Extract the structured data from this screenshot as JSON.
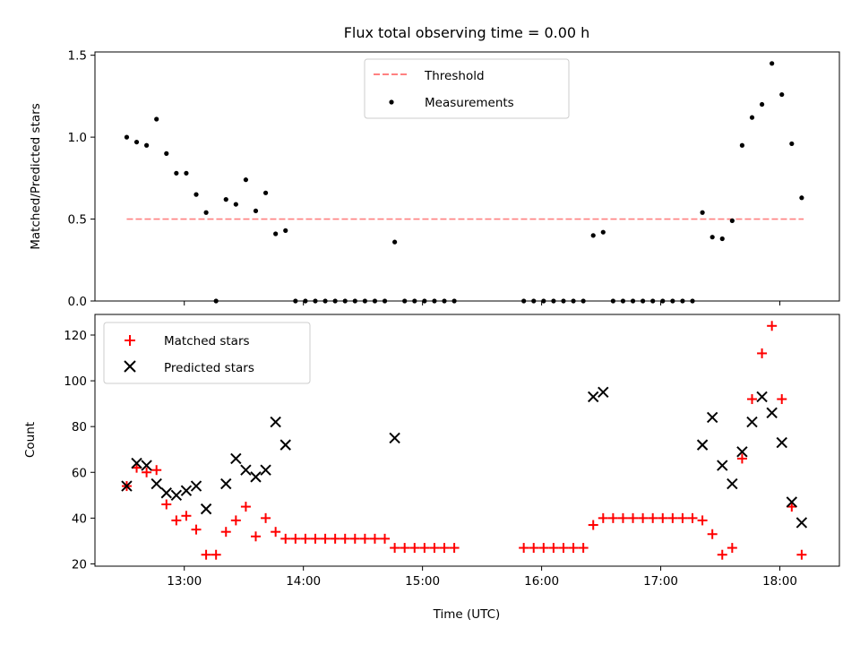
{
  "chart_data": [
    {
      "type": "scatter",
      "title": "Flux total observing time = 0.00 h",
      "xlabel": "",
      "ylabel": "Matched/Predicted stars",
      "x_unit": "time_utc",
      "xlim": [
        "12:15",
        "18:30"
      ],
      "ylim": [
        0,
        1.52
      ],
      "xticks": [
        "13:00",
        "14:00",
        "15:00",
        "16:00",
        "17:00",
        "18:00"
      ],
      "yticks": [
        "0.0",
        "0.5",
        "1.0",
        "1.5"
      ],
      "legend_position": "upper center",
      "threshold": {
        "name": "Threshold",
        "value": 0.5,
        "x_range": [
          "12:31",
          "18:12"
        ],
        "color": "#ff8080",
        "style": "dashed"
      },
      "series": [
        {
          "name": "Measurements",
          "color": "#000000",
          "marker": "dot",
          "points": [
            [
              "12:31",
              1.0
            ],
            [
              "12:36",
              0.97
            ],
            [
              "12:41",
              0.95
            ],
            [
              "12:46",
              1.11
            ],
            [
              "12:51",
              0.9
            ],
            [
              "12:56",
              0.78
            ],
            [
              "13:01",
              0.78
            ],
            [
              "13:06",
              0.65
            ],
            [
              "13:11",
              0.54
            ],
            [
              "13:16",
              0.0
            ],
            [
              "13:21",
              0.62
            ],
            [
              "13:26",
              0.59
            ],
            [
              "13:31",
              0.74
            ],
            [
              "13:36",
              0.55
            ],
            [
              "13:41",
              0.66
            ],
            [
              "13:46",
              0.41
            ],
            [
              "13:51",
              0.43
            ],
            [
              "13:56",
              0.0
            ],
            [
              "14:01",
              0.0
            ],
            [
              "14:06",
              0.0
            ],
            [
              "14:11",
              0.0
            ],
            [
              "14:16",
              0.0
            ],
            [
              "14:21",
              0.0
            ],
            [
              "14:26",
              0.0
            ],
            [
              "14:31",
              0.0
            ],
            [
              "14:36",
              0.0
            ],
            [
              "14:41",
              0.0
            ],
            [
              "14:46",
              0.36
            ],
            [
              "14:51",
              0.0
            ],
            [
              "14:56",
              0.0
            ],
            [
              "15:01",
              0.0
            ],
            [
              "15:06",
              0.0
            ],
            [
              "15:11",
              0.0
            ],
            [
              "15:16",
              0.0
            ],
            [
              "15:51",
              0.0
            ],
            [
              "15:56",
              0.0
            ],
            [
              "16:01",
              0.0
            ],
            [
              "16:06",
              0.0
            ],
            [
              "16:11",
              0.0
            ],
            [
              "16:16",
              0.0
            ],
            [
              "16:21",
              0.0
            ],
            [
              "16:26",
              0.4
            ],
            [
              "16:31",
              0.42
            ],
            [
              "16:36",
              0.0
            ],
            [
              "16:41",
              0.0
            ],
            [
              "16:46",
              0.0
            ],
            [
              "16:51",
              0.0
            ],
            [
              "16:56",
              0.0
            ],
            [
              "17:01",
              0.0
            ],
            [
              "17:06",
              0.0
            ],
            [
              "17:11",
              0.0
            ],
            [
              "17:16",
              0.0
            ],
            [
              "17:21",
              0.54
            ],
            [
              "17:26",
              0.39
            ],
            [
              "17:31",
              0.38
            ],
            [
              "17:36",
              0.49
            ],
            [
              "17:41",
              0.95
            ],
            [
              "17:46",
              1.12
            ],
            [
              "17:51",
              1.2
            ],
            [
              "17:56",
              1.45
            ],
            [
              "18:01",
              1.26
            ],
            [
              "18:06",
              0.96
            ],
            [
              "18:11",
              0.63
            ]
          ]
        }
      ]
    },
    {
      "type": "scatter",
      "title": "",
      "xlabel": "Time (UTC)",
      "ylabel": "Count",
      "x_unit": "time_utc",
      "xlim": [
        "12:15",
        "18:30"
      ],
      "ylim": [
        19,
        129
      ],
      "xticks": [
        "13:00",
        "14:00",
        "15:00",
        "16:00",
        "17:00",
        "18:00"
      ],
      "yticks": [
        "20",
        "40",
        "60",
        "80",
        "100",
        "120"
      ],
      "legend_position": "upper left",
      "series": [
        {
          "name": "Matched stars",
          "color": "#ff0000",
          "marker": "plus",
          "points": [
            [
              "12:31",
              54
            ],
            [
              "12:36",
              62
            ],
            [
              "12:41",
              60
            ],
            [
              "12:46",
              61
            ],
            [
              "12:51",
              46
            ],
            [
              "12:56",
              39
            ],
            [
              "13:01",
              41
            ],
            [
              "13:06",
              35
            ],
            [
              "13:11",
              24
            ],
            [
              "13:16",
              24
            ],
            [
              "13:21",
              34
            ],
            [
              "13:26",
              39
            ],
            [
              "13:31",
              45
            ],
            [
              "13:36",
              32
            ],
            [
              "13:41",
              40
            ],
            [
              "13:46",
              34
            ],
            [
              "13:51",
              31
            ],
            [
              "13:56",
              31
            ],
            [
              "14:01",
              31
            ],
            [
              "14:06",
              31
            ],
            [
              "14:11",
              31
            ],
            [
              "14:16",
              31
            ],
            [
              "14:21",
              31
            ],
            [
              "14:26",
              31
            ],
            [
              "14:31",
              31
            ],
            [
              "14:36",
              31
            ],
            [
              "14:41",
              31
            ],
            [
              "14:46",
              27
            ],
            [
              "14:51",
              27
            ],
            [
              "14:56",
              27
            ],
            [
              "15:01",
              27
            ],
            [
              "15:06",
              27
            ],
            [
              "15:11",
              27
            ],
            [
              "15:16",
              27
            ],
            [
              "15:51",
              27
            ],
            [
              "15:56",
              27
            ],
            [
              "16:01",
              27
            ],
            [
              "16:06",
              27
            ],
            [
              "16:11",
              27
            ],
            [
              "16:16",
              27
            ],
            [
              "16:21",
              27
            ],
            [
              "16:26",
              37
            ],
            [
              "16:31",
              40
            ],
            [
              "16:36",
              40
            ],
            [
              "16:41",
              40
            ],
            [
              "16:46",
              40
            ],
            [
              "16:51",
              40
            ],
            [
              "16:56",
              40
            ],
            [
              "17:01",
              40
            ],
            [
              "17:06",
              40
            ],
            [
              "17:11",
              40
            ],
            [
              "17:16",
              40
            ],
            [
              "17:21",
              39
            ],
            [
              "17:26",
              33
            ],
            [
              "17:31",
              24
            ],
            [
              "17:36",
              27
            ],
            [
              "17:41",
              66
            ],
            [
              "17:46",
              92
            ],
            [
              "17:51",
              112
            ],
            [
              "17:56",
              124
            ],
            [
              "18:01",
              92
            ],
            [
              "18:06",
              45
            ],
            [
              "18:11",
              24
            ]
          ]
        },
        {
          "name": "Predicted stars",
          "color": "#000000",
          "marker": "x",
          "points": [
            [
              "12:31",
              54
            ],
            [
              "12:36",
              64
            ],
            [
              "12:41",
              63
            ],
            [
              "12:46",
              55
            ],
            [
              "12:51",
              51
            ],
            [
              "12:56",
              50
            ],
            [
              "13:01",
              52
            ],
            [
              "13:06",
              54
            ],
            [
              "13:11",
              44
            ],
            [
              "13:21",
              55
            ],
            [
              "13:26",
              66
            ],
            [
              "13:31",
              61
            ],
            [
              "13:36",
              58
            ],
            [
              "13:41",
              61
            ],
            [
              "13:46",
              82
            ],
            [
              "13:51",
              72
            ],
            [
              "14:46",
              75
            ],
            [
              "16:26",
              93
            ],
            [
              "16:31",
              95
            ],
            [
              "17:21",
              72
            ],
            [
              "17:26",
              84
            ],
            [
              "17:31",
              63
            ],
            [
              "17:36",
              55
            ],
            [
              "17:41",
              69
            ],
            [
              "17:46",
              82
            ],
            [
              "17:51",
              93
            ],
            [
              "17:56",
              86
            ],
            [
              "18:01",
              73
            ],
            [
              "18:06",
              47
            ],
            [
              "18:11",
              38
            ]
          ]
        }
      ]
    }
  ]
}
